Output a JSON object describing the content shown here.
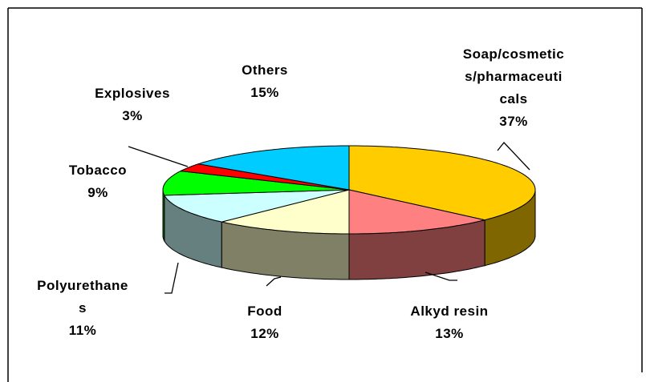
{
  "chart_data": {
    "type": "pie3d",
    "categories": [
      "Soap/cosmetics/pharmaceuticals",
      "Alkyd resin",
      "Food",
      "Polyurethanes",
      "Tobacco",
      "Explosives",
      "Others"
    ],
    "values": [
      37,
      13,
      12,
      11,
      9,
      3,
      15
    ],
    "value_labels": [
      "37%",
      "13%",
      "12%",
      "11%",
      "9%",
      "3%",
      "15%"
    ],
    "colors": [
      "#ffcc00",
      "#ff8080",
      "#ffffcc",
      "#ccffff",
      "#00ff00",
      "#ff0000",
      "#00ccff"
    ],
    "side_colors": [
      "#806600",
      "#804040",
      "#808066",
      "#668080",
      "#008000",
      "#800000",
      "#006680"
    ]
  }
}
